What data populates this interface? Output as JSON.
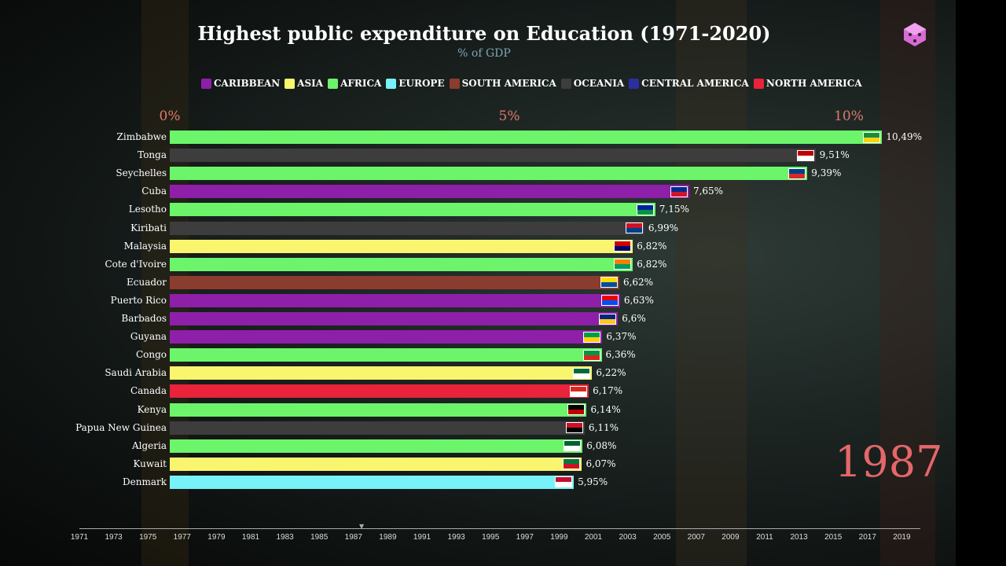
{
  "chart_data": {
    "type": "bar",
    "orientation": "horizontal",
    "title": "Highest public expenditure on Education (1971-2020)",
    "subtitle": "% of GDP",
    "year": "1987",
    "xlim": [
      0,
      10.6
    ],
    "x_ticks": [
      "0%",
      "5%",
      "10%"
    ],
    "legend": [
      {
        "name": "CARIBBEAN",
        "color": "#8e1fa8"
      },
      {
        "name": "ASIA",
        "color": "#f9f56e"
      },
      {
        "name": "AFRICA",
        "color": "#6cf46a"
      },
      {
        "name": "EUROPE",
        "color": "#76f2f8"
      },
      {
        "name": "SOUTH AMERICA",
        "color": "#8a3c2e"
      },
      {
        "name": "OCEANIA",
        "color": "#3d3d3d"
      },
      {
        "name": "CENTRAL AMERICA",
        "color": "#2b2fa0"
      },
      {
        "name": "NORTH AMERICA",
        "color": "#e8233a"
      }
    ],
    "categories": [
      "Zimbabwe",
      "Tonga",
      "Seychelles",
      "Cuba",
      "Lesotho",
      "Kiribati",
      "Malaysia",
      "Cote d'Ivoire",
      "Ecuador",
      "Puerto Rico",
      "Barbados",
      "Guyana",
      "Congo",
      "Saudi Arabia",
      "Canada",
      "Kenya",
      "Papua New Guinea",
      "Algeria",
      "Kuwait",
      "Denmark"
    ],
    "values": [
      10.49,
      9.51,
      9.39,
      7.65,
      7.15,
      6.99,
      6.82,
      6.82,
      6.62,
      6.63,
      6.6,
      6.37,
      6.36,
      6.22,
      6.17,
      6.14,
      6.11,
      6.08,
      6.07,
      5.95
    ],
    "value_labels": [
      "10,49%",
      "9,51%",
      "9,39%",
      "7,65%",
      "7,15%",
      "6,99%",
      "6,82%",
      "6,82%",
      "6,62%",
      "6,63%",
      "6,6%",
      "6,37%",
      "6,36%",
      "6,22%",
      "6,17%",
      "6,14%",
      "6,11%",
      "6,08%",
      "6,07%",
      "5,95%"
    ],
    "regions": [
      "AFRICA",
      "OCEANIA",
      "AFRICA",
      "CARIBBEAN",
      "AFRICA",
      "OCEANIA",
      "ASIA",
      "AFRICA",
      "SOUTH AMERICA",
      "CARIBBEAN",
      "CARIBBEAN",
      "CARIBBEAN",
      "AFRICA",
      "ASIA",
      "NORTH AMERICA",
      "AFRICA",
      "OCEANIA",
      "AFRICA",
      "ASIA",
      "EUROPE"
    ],
    "flag_colors": [
      [
        "#1a8f3a",
        "#fcd116"
      ],
      [
        "#c10000",
        "#fff"
      ],
      [
        "#003d88",
        "#d62828"
      ],
      [
        "#002a8f",
        "#cf142b"
      ],
      [
        "#00209f",
        "#009543"
      ],
      [
        "#ce1126",
        "#003f87"
      ],
      [
        "#cc0001",
        "#010066"
      ],
      [
        "#f77f00",
        "#009e60"
      ],
      [
        "#ffdd00",
        "#034ea2"
      ],
      [
        "#ed0000",
        "#0050f0"
      ],
      [
        "#00267f",
        "#ffc726"
      ],
      [
        "#009e49",
        "#fcd116"
      ],
      [
        "#009543",
        "#dc241f"
      ],
      [
        "#006c35",
        "#fff"
      ],
      [
        "#d52b1e",
        "#fff"
      ],
      [
        "#000",
        "#bb0000"
      ],
      [
        "#ce1126",
        "#000"
      ],
      [
        "#006233",
        "#fff"
      ],
      [
        "#007a3d",
        "#ce1126"
      ],
      [
        "#c60c30",
        "#fff"
      ]
    ],
    "timeline_ticks": [
      "1971",
      "1973",
      "1975",
      "1977",
      "1979",
      "1981",
      "1983",
      "1985",
      "1987",
      "1989",
      "1991",
      "1993",
      "1995",
      "1997",
      "1999",
      "2001",
      "2003",
      "2005",
      "2007",
      "2009",
      "2011",
      "2013",
      "2015",
      "2017",
      "2019"
    ]
  }
}
